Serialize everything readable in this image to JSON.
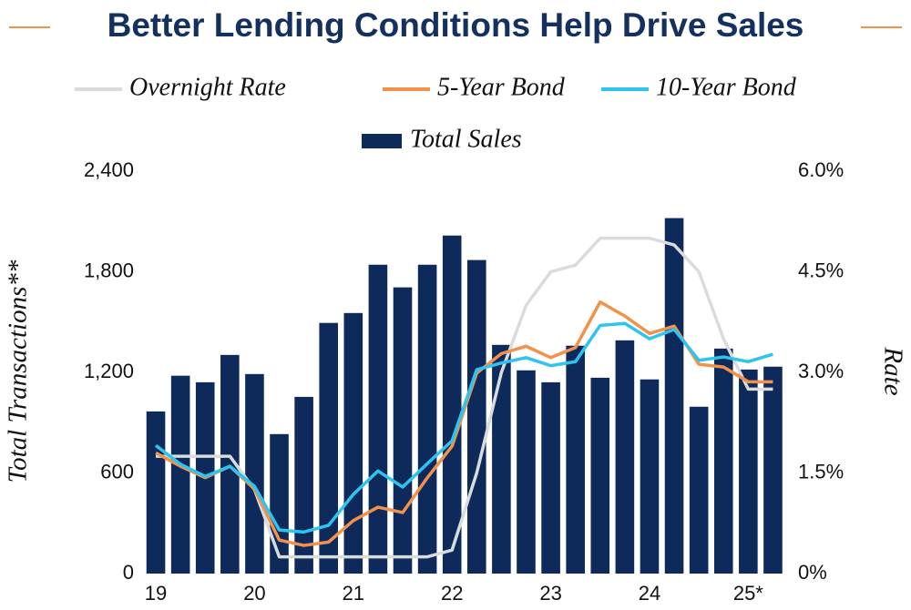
{
  "chart_data": {
    "type": "bar",
    "title": "Better Lending Conditions Help Drive Sales",
    "y_label": "Total Transactions**",
    "y2_label": "Rate",
    "categories": [
      "19",
      null,
      null,
      null,
      "20",
      null,
      null,
      null,
      "21",
      null,
      null,
      null,
      "22",
      null,
      null,
      null,
      "23",
      null,
      null,
      null,
      "24",
      null,
      null,
      null,
      "25*",
      null
    ],
    "series": [
      {
        "name": "Overnight Rate",
        "color": "#d9dcdd",
        "type": "line",
        "axis": "y2",
        "values": [
          1.75,
          1.75,
          1.75,
          1.75,
          1.25,
          0.25,
          0.25,
          0.25,
          0.25,
          0.25,
          0.25,
          0.25,
          0.35,
          1.5,
          3.0,
          4.0,
          4.5,
          4.6,
          5.0,
          5.0,
          5.0,
          4.9,
          4.5,
          3.5,
          2.75,
          2.75
        ]
      },
      {
        "name": "5-Year Bond",
        "color": "#f2914a",
        "type": "line",
        "axis": "y2",
        "values": [
          1.8,
          1.6,
          1.43,
          1.6,
          1.26,
          0.5,
          0.42,
          0.47,
          0.79,
          0.99,
          0.91,
          1.43,
          1.9,
          2.99,
          3.28,
          3.39,
          3.22,
          3.37,
          4.05,
          3.84,
          3.58,
          3.69,
          3.12,
          3.08,
          2.86,
          2.86
        ]
      },
      {
        "name": "10-Year Bond",
        "color": "#2ec4f0",
        "type": "line",
        "axis": "y2",
        "values": [
          1.91,
          1.63,
          1.45,
          1.6,
          1.3,
          0.65,
          0.62,
          0.72,
          1.18,
          1.53,
          1.29,
          1.64,
          1.98,
          3.04,
          3.14,
          3.22,
          3.1,
          3.16,
          3.7,
          3.73,
          3.5,
          3.64,
          3.18,
          3.23,
          3.16,
          3.27
        ]
      },
      {
        "name": "Total Sales",
        "color": "#0d2a5a",
        "type": "bar",
        "values": [
          967,
          1180,
          1141,
          1304,
          1190,
          832,
          1054,
          1495,
          1554,
          1842,
          1707,
          1842,
          2016,
          1870,
          1364,
          1212,
          1141,
          1359,
          1168,
          1391,
          1158,
          2120,
          995,
          1342,
          1217,
          1234
        ]
      }
    ],
    "ylim": [
      0,
      2400
    ],
    "yticks": [
      0,
      600,
      {
        "value": 1200,
        "label": "1,200"
      },
      {
        "value": 1800,
        "label": "1,800"
      },
      {
        "value": 2400,
        "label": "2,400"
      }
    ],
    "y2lim": [
      0,
      6
    ],
    "y2ticks": [
      {
        "value": 0,
        "label": "0%"
      },
      {
        "value": 1.5,
        "label": "1.5%"
      },
      {
        "value": 3,
        "label": "3.0%"
      },
      {
        "value": 4.5,
        "label": "4.5%"
      },
      {
        "value": 6,
        "label": "6.0%"
      }
    ],
    "grid": false
  }
}
